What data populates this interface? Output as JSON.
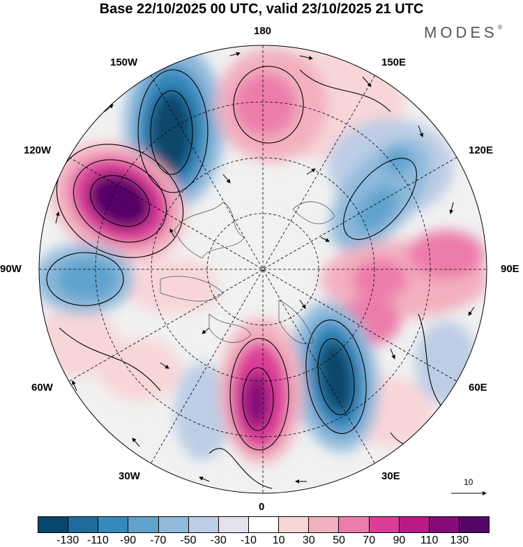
{
  "header": {
    "title": "Base 22/10/2025 00 UTC, valid 23/10/2025 21 UTC",
    "brand": "MODES",
    "brand_mark": "®"
  },
  "map": {
    "longitude_labels": {
      "lon_0": "0",
      "lon_30e": "30E",
      "lon_60e": "60E",
      "lon_90e": "90E",
      "lon_120e": "120E",
      "lon_150e": "150E",
      "lon_180": "180",
      "lon_150w": "150W",
      "lon_120w": "120W",
      "lon_90w": "90W",
      "lon_60w": "60W",
      "lon_30w": "30W"
    },
    "wind_scale_label": "10"
  },
  "colorbar": {
    "colors": [
      "#08476b",
      "#1e6c9b",
      "#3689bd",
      "#5fa2cd",
      "#8fbadb",
      "#bccde5",
      "#e2e2ef",
      "#ffffff",
      "#f8d6d8",
      "#f3b0c0",
      "#ec7daa",
      "#db3d98",
      "#b91a87",
      "#860a78",
      "#540667"
    ],
    "labels": [
      "-130",
      "-110",
      "-90",
      "-70",
      "-50",
      "-30",
      "-10",
      "10",
      "30",
      "50",
      "70",
      "90",
      "110",
      "130"
    ]
  }
}
